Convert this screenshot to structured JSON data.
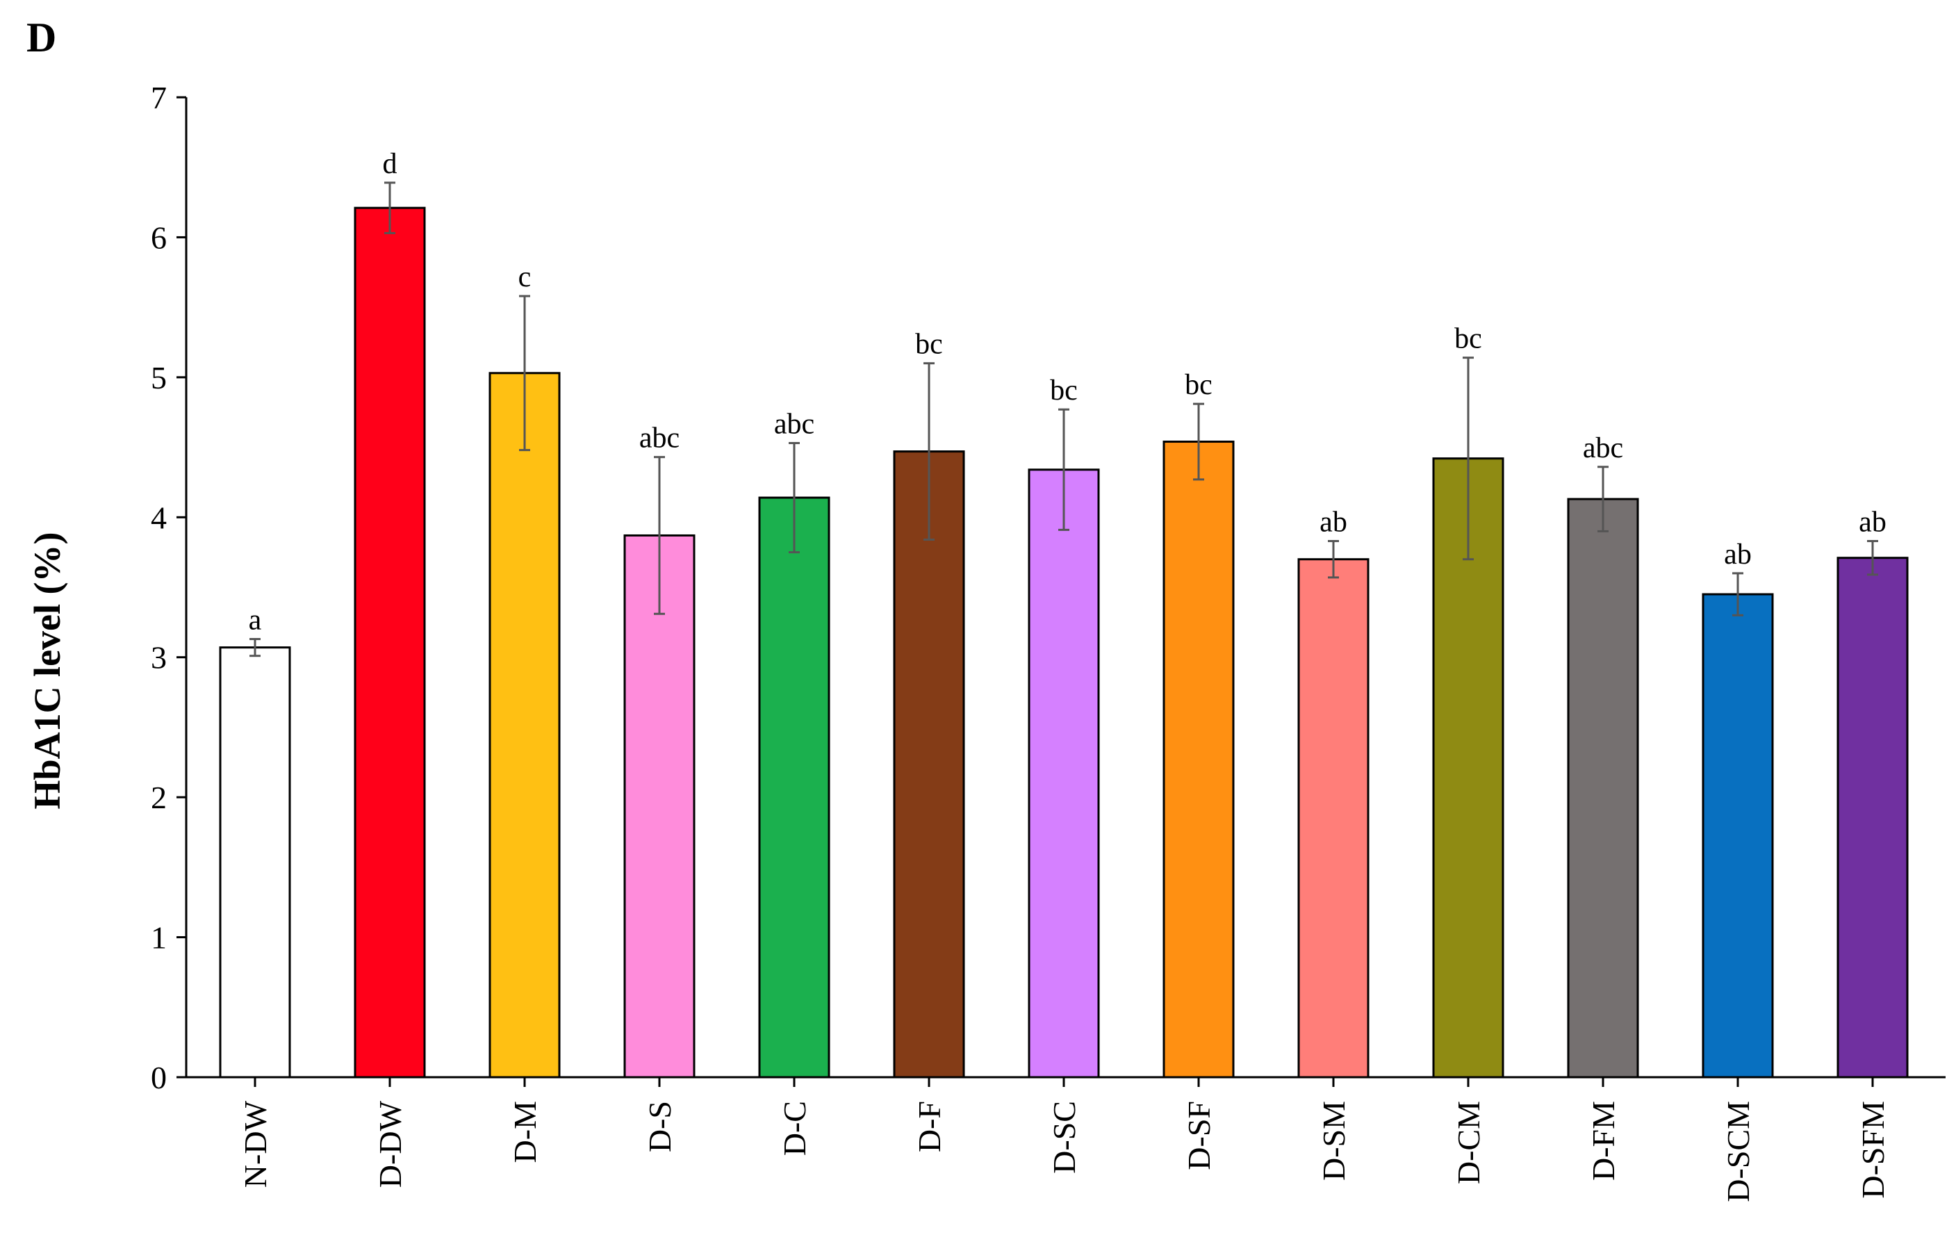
{
  "panel_label": "D",
  "chart_data": {
    "type": "bar",
    "title": "",
    "xlabel": "",
    "ylabel": "HbA1C level (%)",
    "ylim": [
      0,
      7
    ],
    "yticks": [
      0,
      1,
      2,
      3,
      4,
      5,
      6,
      7
    ],
    "grid": false,
    "legend": "none",
    "categories": [
      "N-DW",
      "D-DW",
      "D-M",
      "D-S",
      "D-C",
      "D-F",
      "D-SC",
      "D-SF",
      "D-SM",
      "D-CM",
      "D-FM",
      "D-SCM",
      "D-SFM"
    ],
    "values": [
      3.07,
      6.21,
      5.03,
      3.87,
      4.14,
      4.47,
      4.34,
      4.54,
      3.7,
      4.42,
      4.13,
      3.45,
      3.71
    ],
    "errors": [
      0.06,
      0.18,
      0.55,
      0.56,
      0.39,
      0.63,
      0.43,
      0.27,
      0.13,
      0.72,
      0.23,
      0.15,
      0.12
    ],
    "significance": [
      "a",
      "d",
      "c",
      "abc",
      "abc",
      "bc",
      "bc",
      "bc",
      "ab",
      "bc",
      "abc",
      "ab",
      "ab"
    ],
    "colors": [
      "#ffffff",
      "#ff0019",
      "#ffc013",
      "#ff8cdb",
      "#1bb04e",
      "#843c17",
      "#d580ff",
      "#ff9012",
      "#ff7e79",
      "#8f8b13",
      "#757070",
      "#0870c0",
      "#7030a0"
    ]
  }
}
